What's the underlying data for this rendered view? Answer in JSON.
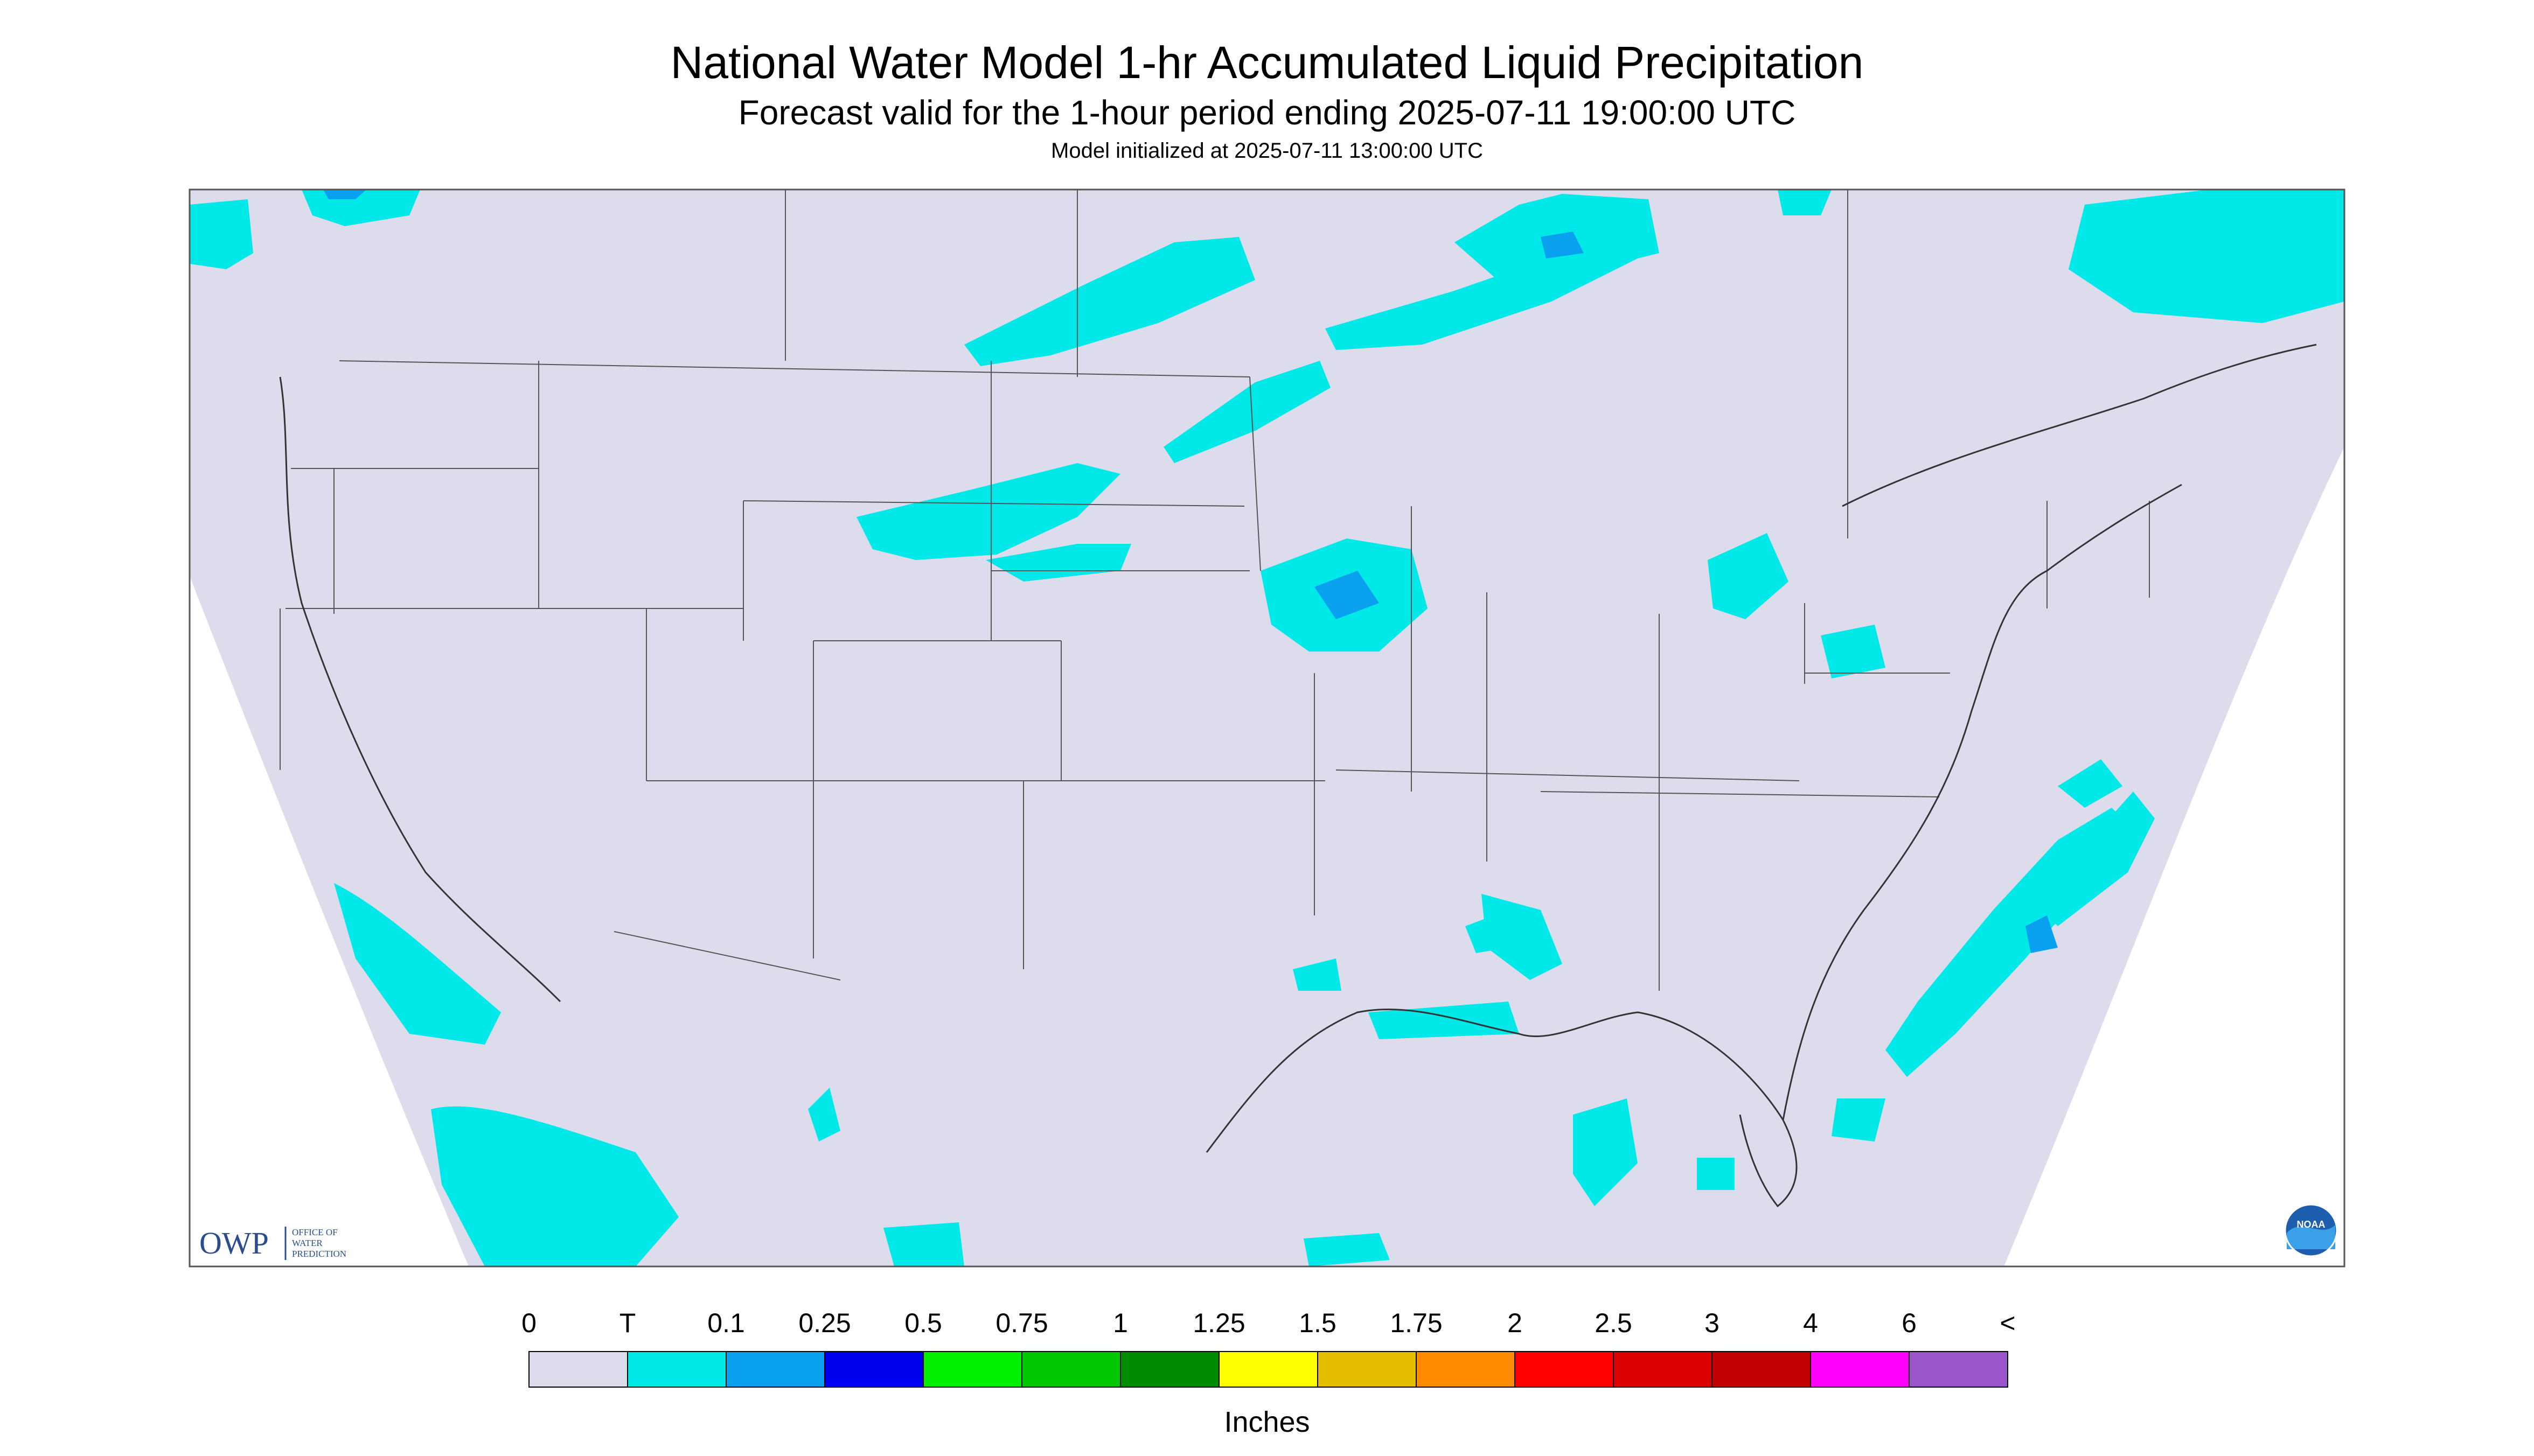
{
  "title": "National Water Model 1-hr Accumulated Liquid Precipitation",
  "subtitle": "Forecast valid for the 1-hour period ending 2025-07-11 19:00:00 UTC",
  "init_line": "Model initialized at 2025-07-11 13:00:00 UTC",
  "logo": {
    "owp": "OWP",
    "owp_sub": [
      "OFFICE OF",
      "WATER",
      "PREDICTION"
    ],
    "noaa": "NOAA"
  },
  "colorbar": {
    "labels": [
      "0",
      "T",
      "0.1",
      "0.25",
      "0.5",
      "0.75",
      "1",
      "1.25",
      "1.5",
      "1.75",
      "2",
      "2.5",
      "3",
      "4",
      "6",
      "<"
    ],
    "colors": [
      "#dcdcec",
      "#00e8e8",
      "#0aa0f0",
      "#0000f0",
      "#00f000",
      "#00c800",
      "#008c00",
      "#ffff00",
      "#e6be00",
      "#ff8c00",
      "#ff0000",
      "#dc0000",
      "#c00000",
      "#ff00ff",
      "#9955c9"
    ],
    "units": "Inches"
  },
  "colors": {
    "background": "#dcdcec",
    "outside": "#ffffff",
    "border": "#555555",
    "trace": "#00e8e8",
    "light": "#0aa0f0"
  }
}
